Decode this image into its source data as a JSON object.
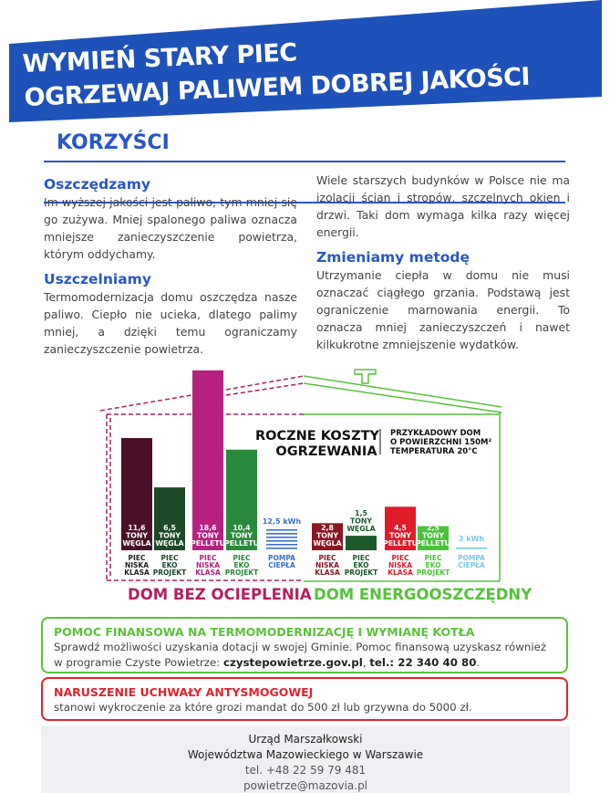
{
  "header": {
    "line1": "WYMIEŃ STARY PIEC",
    "line2": "OGRZEWAJ PALIWEM DOBREJ JAKOŚCI",
    "color": "#1f52b8"
  },
  "section_title": "KORZYŚCI",
  "left_column": [
    {
      "heading": "Oszczędzamy",
      "text": "Im wyższej jakości jest paliwo, tym mniej się go zużywa. Mniej spalonego paliwa oznacza mniejsze zanieczyszczenie powietrza, którym oddychamy."
    },
    {
      "heading": "Uszczelniamy",
      "text": "Termomodernizacja domu oszczędza nasze paliwo. Ciepło nie ucieka, dlatego palimy mniej, a dzięki temu ograniczamy zanieczyszczenie powietrza."
    }
  ],
  "right_column": [
    {
      "heading": "",
      "text": "Wiele starszych budynków w Polsce nie ma izolacji ścian i stropów, szczelnych okien i drzwi. Taki dom wymaga kilka razy więcej energii."
    },
    {
      "heading": "Zmieniamy metodę",
      "text": "Utrzymanie ciepła w domu nie musi oznaczać ciągłego grzania. Podstawą jest ograniczenie marnowania energii. To oznacza mniej zanieczyszczeń i nawet kilkukrotne zmniejszenie wydatków."
    }
  ],
  "infographic": {
    "title_line1": "ROCZNE KOSZTY",
    "title_line2": "OGRZEWANIA",
    "note_line1": "PRZYKŁADOWY DOM",
    "note_line2": "O POWIERZCHNI 150M²",
    "note_line3": "TEMPERATURA 20°C",
    "group_left": "DOM BEZ OCIEPLENIA",
    "group_right": "DOM ENERGOOSZCZĘDNY",
    "colors": {
      "left_group": "#b51f5e",
      "right_group": "#55c23a"
    }
  },
  "chart_data": {
    "type": "bar",
    "groups": [
      {
        "name": "DOM BEZ OCIEPLENIA",
        "items": [
          {
            "value": 11.6,
            "label": [
              "11,6",
              "TONY",
              "WĘGLA"
            ],
            "caption": [
              "PIEC",
              "NISKA",
              "KLASA"
            ],
            "color": "#4a1028",
            "caption_color": "#222222"
          },
          {
            "value": 6.5,
            "label": [
              "6,5",
              "TONY",
              "WĘGLA"
            ],
            "caption": [
              "PIEC",
              "EKO",
              "PROJEKT"
            ],
            "color": "#1c4a26",
            "caption_color": "#1c4a26"
          },
          {
            "value": 18.6,
            "label": [
              "18,6",
              "TONY",
              "PELLETU"
            ],
            "caption": [
              "PIEC",
              "NISKA",
              "KLASA"
            ],
            "color": "#b5217f",
            "caption_color": "#b5217f"
          },
          {
            "value": 10.4,
            "label": [
              "10,4",
              "TONY",
              "PELLETU"
            ],
            "caption": [
              "PIEC",
              "EKO",
              "PROJEKT"
            ],
            "color": "#2a8a3c",
            "caption_color": "#2a8a3c"
          },
          {
            "value": 12.5,
            "unit": "kWh",
            "label": [
              "12,5 kWh"
            ],
            "caption": [
              "POMPA",
              "CIEPŁA"
            ],
            "color": "#3a6fd0",
            "caption_color": "#3a6fd0",
            "pump": true
          }
        ]
      },
      {
        "name": "DOM ENERGOOSZCZĘDNY",
        "items": [
          {
            "value": 2.8,
            "label": [
              "2,8",
              "TONY",
              "WĘGLA"
            ],
            "caption": [
              "PIEC",
              "NISKA",
              "KLASA"
            ],
            "color": "#8c1622",
            "caption_color": "#8c1622"
          },
          {
            "value": 1.5,
            "label": [
              "1,5",
              "TONY",
              "WĘGLA"
            ],
            "caption": [
              "PIEC",
              "EKO",
              "PROJEKT"
            ],
            "color": "#1d5a2a",
            "caption_color": "#1d5a2a",
            "label_above": true
          },
          {
            "value": 4.5,
            "label": [
              "4,5",
              "TONY",
              "PELLETU"
            ],
            "caption": [
              "PIEC",
              "NISKA",
              "KLASA"
            ],
            "color": "#e01b2a",
            "caption_color": "#e01b2a"
          },
          {
            "value": 2.5,
            "label": [
              "2,5",
              "TONY",
              "PELLETU"
            ],
            "caption": [
              "PIEC",
              "EKO",
              "PROJEKT"
            ],
            "color": "#4cc23a",
            "caption_color": "#4cc23a"
          },
          {
            "value": 3,
            "unit": "kWh",
            "label": [
              "3 kWh"
            ],
            "caption": [
              "POMPA",
              "CIEPŁA"
            ],
            "color": "#7ac8e8",
            "caption_color": "#7ac8e8",
            "pump": true
          }
        ]
      }
    ]
  },
  "help_box": {
    "title": "POMOC FINANSOWA NA TERMOMODERNIZACJĘ I WYMIANĘ KOTŁA",
    "text1": "Sprawdź możliwości uzyskania dotacji w swojej Gminie. Pomoc finansową uzyskasz również w programie Czyste Powietrze: ",
    "link": "czystepowietrze.gov.pl",
    "sep": ", ",
    "phone": "tel.: 22 340 40 80",
    "end": ".",
    "color": "#5cc23a"
  },
  "warning_box": {
    "title": "NARUSZENIE UCHWAŁY ANTYSMOGOWEJ",
    "text": "stanowi wykroczenie za które grozi mandat do 500 zł lub grzywna do 5000 zł.",
    "color": "#e0242e"
  },
  "footer": {
    "line1": "Urząd Marszałkowski",
    "line2": "Województwa Mazowieckiego w Warszawie",
    "phone": "tel. +48 22 59 79 481",
    "email": "powietrze@mazovia.pl"
  }
}
